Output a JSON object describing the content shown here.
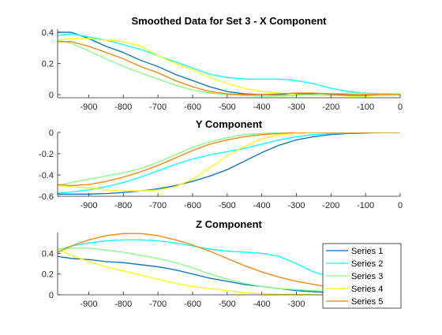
{
  "chart_data": [
    {
      "type": "line",
      "title": "Smoothed Data for Set 3 - X Component",
      "xlabel": "",
      "ylabel": "",
      "xlim": [
        -990,
        0
      ],
      "ylim": [
        -0.02,
        0.42
      ],
      "xticks": [
        -900,
        -800,
        -700,
        -600,
        -500,
        -400,
        -300,
        -200,
        -100,
        0
      ],
      "xtick_labels": [
        "-900",
        "-800",
        "-700",
        "-600",
        "-500",
        "-400",
        "-300",
        "-200",
        "-100",
        "0"
      ],
      "yticks": [
        0,
        0.2,
        0.4
      ],
      "ytick_labels": [
        "0",
        "0.2",
        "0.4"
      ],
      "grid": false,
      "x": [
        -990,
        -950,
        -900,
        -850,
        -800,
        -750,
        -700,
        -650,
        -600,
        -550,
        -500,
        -450,
        -400,
        -350,
        -300,
        -250,
        -200,
        -150,
        -100,
        -50,
        0
      ],
      "series": [
        {
          "values": [
            0.4,
            0.4,
            0.36,
            0.31,
            0.27,
            0.22,
            0.18,
            0.13,
            0.09,
            0.05,
            0.02,
            0.005,
            0.0,
            0.0,
            0.005,
            0.005,
            0.0,
            -0.005,
            -0.005,
            0.0,
            0.0
          ]
        },
        {
          "values": [
            0.38,
            0.39,
            0.37,
            0.35,
            0.32,
            0.29,
            0.25,
            0.21,
            0.17,
            0.13,
            0.11,
            0.1,
            0.1,
            0.1,
            0.09,
            0.07,
            0.04,
            0.02,
            0.01,
            0.005,
            0.005
          ]
        },
        {
          "values": [
            0.35,
            0.33,
            0.28,
            0.23,
            0.18,
            0.14,
            0.1,
            0.06,
            0.03,
            0.01,
            0.0,
            -0.005,
            -0.01,
            -0.01,
            -0.005,
            0.0,
            0.005,
            0.01,
            0.01,
            0.005,
            0.005
          ]
        },
        {
          "values": [
            0.35,
            0.36,
            0.36,
            0.35,
            0.34,
            0.31,
            0.25,
            0.2,
            0.16,
            0.11,
            0.07,
            0.04,
            0.02,
            0.01,
            0.0,
            -0.005,
            -0.005,
            -0.01,
            -0.01,
            -0.005,
            0.0
          ]
        },
        {
          "values": [
            0.34,
            0.34,
            0.31,
            0.27,
            0.23,
            0.18,
            0.14,
            0.09,
            0.05,
            0.02,
            0.005,
            0.0,
            0.0,
            0.005,
            0.01,
            0.01,
            0.005,
            0.0,
            0.0,
            0.0,
            0.0
          ]
        }
      ]
    },
    {
      "type": "line",
      "title": "Y Component",
      "xlabel": "",
      "ylabel": "",
      "xlim": [
        -990,
        0
      ],
      "ylim": [
        -0.6,
        0.0
      ],
      "xticks": [
        -900,
        -800,
        -700,
        -600,
        -500,
        -400,
        -300,
        -200,
        -100,
        0
      ],
      "xtick_labels": [
        "-900",
        "-800",
        "-700",
        "-600",
        "-500",
        "-400",
        "-300",
        "-200",
        "-100",
        "0"
      ],
      "yticks": [
        -0.6,
        -0.4,
        -0.2,
        0
      ],
      "ytick_labels": [
        "-0.6",
        "-0.4",
        "-0.2",
        "0"
      ],
      "grid": false,
      "x": [
        -990,
        -950,
        -900,
        -850,
        -800,
        -750,
        -700,
        -650,
        -600,
        -550,
        -500,
        -450,
        -400,
        -350,
        -300,
        -250,
        -200,
        -150,
        -100,
        -50,
        0
      ],
      "series": [
        {
          "values": [
            -0.58,
            -0.58,
            -0.58,
            -0.575,
            -0.565,
            -0.55,
            -0.53,
            -0.5,
            -0.46,
            -0.41,
            -0.35,
            -0.27,
            -0.19,
            -0.12,
            -0.07,
            -0.04,
            -0.02,
            -0.01,
            -0.005,
            0.0,
            0.0
          ]
        },
        {
          "values": [
            -0.57,
            -0.56,
            -0.54,
            -0.51,
            -0.47,
            -0.42,
            -0.36,
            -0.3,
            -0.25,
            -0.21,
            -0.18,
            -0.15,
            -0.11,
            -0.07,
            -0.04,
            -0.02,
            -0.01,
            -0.005,
            0.0,
            0.0,
            0.0
          ]
        },
        {
          "values": [
            -0.5,
            -0.47,
            -0.44,
            -0.41,
            -0.38,
            -0.34,
            -0.28,
            -0.21,
            -0.14,
            -0.09,
            -0.05,
            -0.02,
            -0.01,
            0.0,
            0.0,
            0.0,
            0.0,
            0.0,
            0.0,
            0.0,
            0.0
          ]
        },
        {
          "values": [
            -0.5,
            -0.51,
            -0.52,
            -0.54,
            -0.55,
            -0.55,
            -0.54,
            -0.51,
            -0.44,
            -0.33,
            -0.22,
            -0.13,
            -0.06,
            -0.02,
            -0.01,
            0.0,
            0.0,
            0.0,
            0.0,
            0.0,
            0.0
          ]
        },
        {
          "values": [
            -0.49,
            -0.5,
            -0.49,
            -0.46,
            -0.42,
            -0.37,
            -0.31,
            -0.24,
            -0.17,
            -0.11,
            -0.07,
            -0.04,
            -0.02,
            -0.01,
            0.0,
            0.0,
            0.0,
            0.0,
            0.0,
            0.0,
            0.0
          ]
        }
      ]
    },
    {
      "type": "line",
      "title": "Z Component",
      "xlabel": "",
      "ylabel": "",
      "xlim": [
        -990,
        0
      ],
      "ylim": [
        0,
        0.6
      ],
      "xticks": [
        -900,
        -800,
        -700,
        -600,
        -500,
        -400,
        -300
      ],
      "xtick_labels": [
        "-900",
        "-800",
        "-700",
        "-600",
        "-500",
        "-400",
        "-300"
      ],
      "yticks": [
        0,
        0.2,
        0.4
      ],
      "ytick_labels": [
        "0",
        "0.2",
        "0.4"
      ],
      "grid": false,
      "legend": "bottom-right",
      "x": [
        -990,
        -950,
        -900,
        -850,
        -800,
        -750,
        -700,
        -650,
        -600,
        -550,
        -500,
        -450,
        -400,
        -350,
        -300,
        -250,
        -200,
        -150,
        -100,
        -50,
        0
      ],
      "series": [
        {
          "name": "Series 1",
          "values": [
            0.37,
            0.35,
            0.34,
            0.32,
            0.31,
            0.29,
            0.27,
            0.24,
            0.2,
            0.16,
            0.13,
            0.1,
            0.08,
            0.06,
            0.04,
            0.03,
            0.02,
            0.015,
            0.01,
            0.0,
            0.0
          ]
        },
        {
          "name": "Series 2",
          "values": [
            0.43,
            0.47,
            0.5,
            0.52,
            0.53,
            0.53,
            0.52,
            0.5,
            0.47,
            0.44,
            0.42,
            0.41,
            0.4,
            0.37,
            0.3,
            0.22,
            0.17,
            0.12,
            0.07,
            0.03,
            0.01
          ]
        },
        {
          "name": "Series 3",
          "values": [
            0.44,
            0.45,
            0.45,
            0.43,
            0.41,
            0.38,
            0.35,
            0.31,
            0.26,
            0.2,
            0.15,
            0.11,
            0.08,
            0.06,
            0.05,
            0.04,
            0.03,
            0.02,
            0.02,
            0.01,
            0.01
          ]
        },
        {
          "name": "Series 4",
          "values": [
            0.44,
            0.38,
            0.32,
            0.27,
            0.23,
            0.19,
            0.15,
            0.11,
            0.08,
            0.06,
            0.04,
            0.02,
            0.01,
            0.005,
            0.005,
            0.0,
            0.0,
            0.0,
            0.0,
            0.0,
            0.0
          ]
        },
        {
          "name": "Series 5",
          "values": [
            0.41,
            0.47,
            0.53,
            0.57,
            0.59,
            0.59,
            0.57,
            0.53,
            0.48,
            0.42,
            0.35,
            0.28,
            0.22,
            0.17,
            0.13,
            0.1,
            0.07,
            0.05,
            0.03,
            0.02,
            0.01
          ]
        }
      ]
    }
  ],
  "series_colors": [
    "#0072BD",
    "#00FFFF",
    "#80FF80",
    "#FFFF00",
    "#FF7F00"
  ],
  "colors": {
    "axis": "#262626",
    "background": "#ffffff"
  }
}
